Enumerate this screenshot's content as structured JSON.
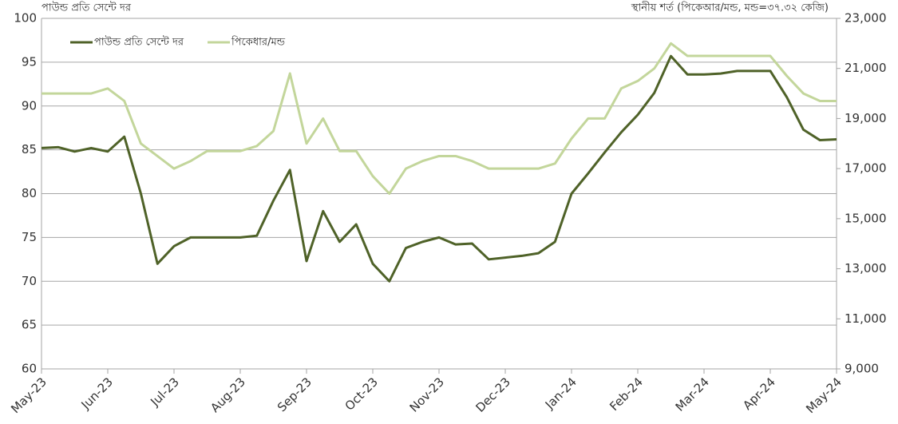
{
  "chart_data": {
    "type": "line",
    "ylabel": "পাউন্ড প্রতি সেন্টে দর",
    "y2label": "স্থানীয় শর্ত (পিকেআর/মন্ড, মন্ড=৩৭.৩২ কেজি)",
    "categories": [
      "May-23",
      null,
      null,
      null,
      "Jun-23",
      null,
      null,
      null,
      "Jul-23",
      null,
      null,
      null,
      "Aug-23",
      null,
      null,
      null,
      "Sep-23",
      null,
      null,
      null,
      "Oct-23",
      null,
      null,
      null,
      "Nov-23",
      null,
      null,
      null,
      "Dec-23",
      null,
      null,
      null,
      "Jan-24",
      null,
      null,
      null,
      "Feb-24",
      null,
      null,
      null,
      "Mar-24",
      null,
      null,
      null,
      "Apr-24",
      null,
      null,
      null,
      "May-24"
    ],
    "series": [
      {
        "name": "পাউন্ড প্রতি সেন্টে দর",
        "color": "#4f6228",
        "values": [
          85.2,
          85.3,
          84.8,
          85.2,
          84.8,
          86.5,
          80,
          72,
          74,
          75,
          75,
          75,
          75,
          75.2,
          79.2,
          82.7,
          72.3,
          78,
          74.5,
          76.5,
          72,
          70,
          73.8,
          74.5,
          75,
          74.2,
          74.3,
          72.5,
          72.7,
          72.9,
          73.2,
          74.5,
          80,
          82.3,
          84.7,
          87,
          89,
          91.5,
          95.7,
          93.6,
          93.6,
          93.7,
          94,
          94,
          94,
          91,
          87.3,
          86.1,
          86.2
        ]
      },
      {
        "name": "পিকেধার/মন্ড",
        "color": "#c3d69b",
        "axis": "y2",
        "values": [
          20000,
          20000,
          20000,
          20000,
          20200,
          19700,
          18000,
          17500,
          17000,
          17300,
          17700,
          17700,
          17700,
          17900,
          18500,
          20800,
          18000,
          19000,
          17700,
          17700,
          16700,
          16000,
          17000,
          17300,
          17500,
          17500,
          17300,
          17000,
          17000,
          17000,
          17000,
          17200,
          18200,
          19000,
          19000,
          20200,
          20500,
          21000,
          22000,
          21500,
          21500,
          21500,
          21500,
          21500,
          21500,
          20700,
          20000,
          19700,
          19700
        ]
      }
    ],
    "ylim": [
      60,
      100
    ],
    "yticks": [
      60,
      65,
      70,
      75,
      80,
      85,
      90,
      95,
      100
    ],
    "y2lim": [
      9000,
      23000
    ],
    "y2ticks": [
      {
        "value": 9000,
        "label": "9,000"
      },
      {
        "value": 11000,
        "label": "11,000"
      },
      {
        "value": 13000,
        "label": "13,000"
      },
      {
        "value": 15000,
        "label": "15,000"
      },
      {
        "value": 17000,
        "label": "17,000"
      },
      {
        "value": 19000,
        "label": "19,000"
      },
      {
        "value": 21000,
        "label": "21,000"
      },
      {
        "value": 23000,
        "label": "23,000"
      }
    ],
    "grid": true,
    "legend": "top-left"
  }
}
